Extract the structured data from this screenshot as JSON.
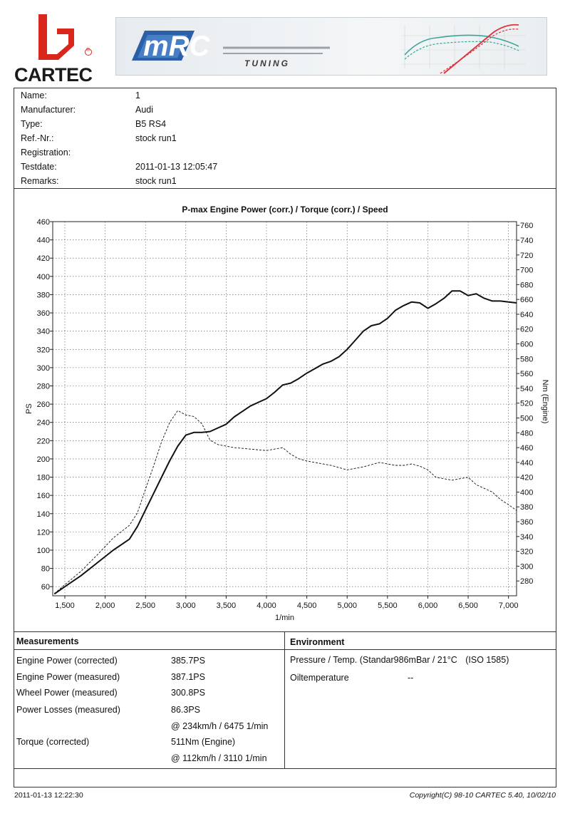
{
  "header": {
    "logo_text": "CARTEC",
    "logo_reg": "®",
    "banner_brand": "mRC",
    "banner_sub": "TUNING"
  },
  "info": [
    {
      "label": "Name:",
      "value": "1"
    },
    {
      "label": "Manufacturer:",
      "value": "Audi"
    },
    {
      "label": "Type:",
      "value": "B5 RS4"
    },
    {
      "label": "Ref.-Nr.:",
      "value": "stock run1"
    },
    {
      "label": "Registration:",
      "value": ""
    },
    {
      "label": "Testdate:",
      "value": "2011-01-13 12:05:47"
    },
    {
      "label": "Remarks:",
      "value": "stock run1"
    }
  ],
  "chart_data": {
    "type": "line",
    "title": "P-max Engine Power (corr.) / Torque (corr.) / Speed",
    "xlabel": "1/min",
    "ylabel": "PS",
    "y2label": "Nm (Engine)",
    "xlim": [
      1350,
      7100
    ],
    "ylim": [
      50,
      460
    ],
    "y2lim": [
      260,
      765
    ],
    "x_ticks": [
      1500,
      2000,
      2500,
      3000,
      3500,
      4000,
      4500,
      5000,
      5500,
      6000,
      6500,
      7000
    ],
    "x_tick_labels": [
      "1,500",
      "2,000",
      "2,500",
      "3,000",
      "3,500",
      "4,000",
      "4,500",
      "5,000",
      "5,500",
      "6,000",
      "6,500",
      "7,000"
    ],
    "y_ticks": [
      60,
      80,
      100,
      120,
      140,
      160,
      180,
      200,
      220,
      240,
      260,
      280,
      300,
      320,
      340,
      360,
      380,
      400,
      420,
      440,
      460
    ],
    "y2_ticks": [
      280,
      300,
      320,
      340,
      360,
      380,
      400,
      420,
      440,
      460,
      480,
      500,
      520,
      540,
      560,
      580,
      600,
      620,
      640,
      660,
      680,
      700,
      720,
      740,
      760
    ],
    "grid": true,
    "series": [
      {
        "axis": "left",
        "style": "solid",
        "x": [
          1370,
          1500,
          1700,
          1900,
          2100,
          2300,
          2400,
          2500,
          2600,
          2700,
          2800,
          2900,
          3000,
          3100,
          3200,
          3300,
          3400,
          3500,
          3600,
          3700,
          3800,
          3900,
          4000,
          4100,
          4200,
          4300,
          4400,
          4500,
          4600,
          4700,
          4800,
          4900,
          5000,
          5100,
          5200,
          5300,
          5400,
          5500,
          5600,
          5700,
          5800,
          5900,
          6000,
          6100,
          6200,
          6300,
          6400,
          6500,
          6600,
          6700,
          6800,
          6900,
          7000,
          7100
        ],
        "y": [
          52,
          60,
          72,
          86,
          100,
          112,
          126,
          144,
          162,
          180,
          198,
          214,
          226,
          229,
          229,
          230,
          234,
          238,
          246,
          252,
          258,
          262,
          266,
          273,
          281,
          283,
          288,
          294,
          299,
          304,
          307,
          312,
          320,
          330,
          340,
          346,
          348,
          354,
          363,
          368,
          372,
          371,
          365,
          370,
          376,
          384,
          384,
          379,
          381,
          376,
          373,
          373,
          372,
          371
        ]
      },
      {
        "axis": "right",
        "style": "dashed",
        "x": [
          1370,
          1500,
          1700,
          1900,
          2100,
          2300,
          2400,
          2500,
          2600,
          2700,
          2800,
          2900,
          3000,
          3100,
          3200,
          3300,
          3400,
          3500,
          3600,
          3700,
          3800,
          3900,
          4000,
          4100,
          4200,
          4300,
          4400,
          4500,
          4600,
          4700,
          4800,
          4900,
          5000,
          5100,
          5200,
          5300,
          5400,
          5500,
          5600,
          5700,
          5800,
          5900,
          6000,
          6100,
          6200,
          6300,
          6400,
          6500,
          6600,
          6700,
          6800,
          6900,
          7000,
          7100
        ],
        "y": [
          263,
          275,
          293,
          315,
          338,
          355,
          372,
          404,
          435,
          468,
          494,
          510,
          504,
          502,
          492,
          470,
          464,
          462,
          460,
          459,
          458,
          457,
          456,
          458,
          460,
          451,
          445,
          442,
          440,
          438,
          436,
          433,
          430,
          432,
          434,
          437,
          440,
          438,
          436,
          436,
          438,
          435,
          430,
          420,
          418,
          416,
          418,
          420,
          410,
          405,
          400,
          390,
          383,
          375
        ]
      }
    ]
  },
  "measurements": {
    "title": "Measurements",
    "rows": [
      {
        "label": "Engine Power (corrected)",
        "value": "385.7PS"
      },
      {
        "label": "Engine Power (measured)",
        "value": "387.1PS"
      },
      {
        "label": "Wheel Power (measured)",
        "value": "300.8PS"
      },
      {
        "label": "Power Losses (measured)",
        "value": "86.3PS"
      },
      {
        "label": "",
        "value": "@ 234km/h / 6475 1/min"
      },
      {
        "label": "Torque (corrected)",
        "value": "511Nm (Engine)"
      },
      {
        "label": "",
        "value": "@ 112km/h / 3110 1/min"
      }
    ]
  },
  "environment": {
    "title": "Environment",
    "pressure_label": "Pressure / Temp. (Standar",
    "pressure_value": "986mBar / 21°C",
    "pressure_norm": "(ISO 1585)",
    "oil_label": "Oiltemperature",
    "oil_value": "--"
  },
  "footer": {
    "timestamp": "2011-01-13 12:22:30",
    "copyright": "Copyright(C) 98-10 CARTEC 5.40, 10/02/10"
  }
}
